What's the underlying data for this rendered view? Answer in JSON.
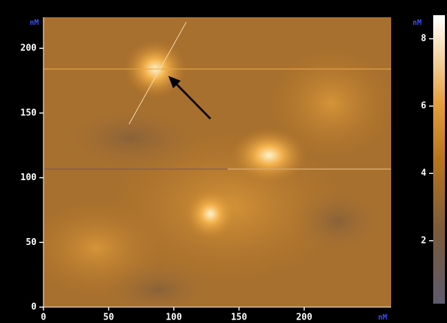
{
  "chart_data": {
    "type": "image",
    "x_unit": "nM",
    "y_unit": "nM",
    "colorbar_unit": "nM",
    "xlim": [
      0,
      266.7
    ],
    "xticks": [
      0,
      50,
      100,
      150,
      200
    ],
    "ylim": [
      0,
      224
    ],
    "yticks": [
      0,
      50,
      100,
      150,
      200
    ],
    "colorbar_lim": [
      0.13,
      8.7
    ],
    "colorbar_ticks": [
      2,
      4,
      6,
      8
    ]
  }
}
